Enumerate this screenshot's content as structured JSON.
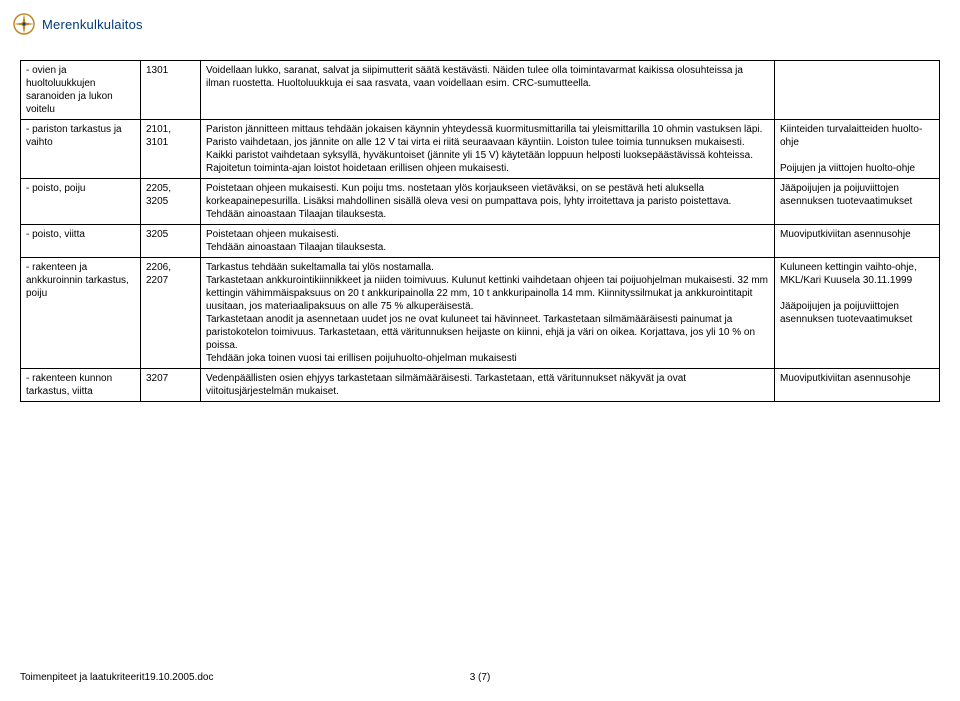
{
  "brand": "Merenkulkulaitos",
  "rows": [
    {
      "col1": "- ovien ja huoltoluukkujen saranoiden ja lukon voitelu",
      "col2": "1301",
      "col3": "Voidellaan lukko, saranat, salvat ja siipimutterit säätä kestävästi. Näiden tulee olla toimintavarmat kaikissa olosuhteissa ja ilman ruostetta. Huoltoluukkuja ei saa rasvata, vaan voidellaan esim. CRC-sumutteella.",
      "col4": ""
    },
    {
      "col1": "- pariston tarkastus ja vaihto",
      "col2": "2101, 3101",
      "col3": "Pariston jännitteen mittaus tehdään jokaisen käynnin yhteydessä kuormitusmittarilla tai yleismittarilla 10 ohmin vastuksen läpi. Paristo vaihdetaan, jos jännite on alle 12 V tai virta ei riitä seuraavaan käyntiin. Loiston tulee toimia tunnuksen mukaisesti.\nKaikki paristot vaihdetaan syksyllä, hyväkuntoiset (jännite yli 15 V) käytetään loppuun helposti luoksepäästävissä kohteissa.\nRajoitetun toiminta-ajan loistot hoidetaan erillisen ohjeen mukaisesti.",
      "col4": "Kiinteiden turvalaitteiden huolto-ohje\n\nPoijujen ja viittojen huolto-ohje"
    },
    {
      "col1": "- poisto, poiju",
      "col2": "2205, 3205",
      "col3": "Poistetaan ohjeen mukaisesti. Kun poiju tms. nostetaan ylös korjaukseen vietäväksi, on se pestävä heti aluksella korkeapainepesurilla. Lisäksi mahdollinen sisällä oleva vesi on pumpattava pois, lyhty irroitettava ja paristo poistettava.\nTehdään ainoastaan Tilaajan tilauksesta.",
      "col4": "Jääpoijujen ja poijuviittojen asennuksen tuotevaatimukset"
    },
    {
      "col1": "- poisto, viitta",
      "col2": "3205",
      "col3": "Poistetaan ohjeen mukaisesti.\nTehdään ainoastaan Tilaajan tilauksesta.",
      "col4": "Muoviputkiviitan asennusohje"
    },
    {
      "col1": "- rakenteen ja ankkuroinnin tarkastus, poiju",
      "col2": "2206, 2207",
      "col3": "Tarkastus tehdään sukeltamalla tai ylös nostamalla.\nTarkastetaan ankkurointikiinnikkeet ja niiden toimivuus. Kulunut kettinki vaihdetaan ohjeen tai poijuohjelman mukaisesti. 32 mm kettingin vähimmäispaksuus on 20 t ankkuripainolla 22 mm, 10 t ankkuripainolla 14 mm. Kiinnityssilmukat ja ankkurointitapit uusitaan, jos materiaalipaksuus on alle 75 % alkuperäisestä.\nTarkastetaan anodit ja asennetaan uudet jos ne ovat kuluneet tai hävinneet. Tarkastetaan silmämääräisesti painumat ja paristokotelon toimivuus. Tarkastetaan, että väritunnuksen heijaste on kiinni, ehjä ja väri on oikea. Korjattava, jos yli 10 % on poissa.\nTehdään joka toinen vuosi tai erillisen poijuhuolto-ohjelman mukaisesti",
      "col4": "Kuluneen kettingin vaihto-ohje, MKL/Kari Kuusela 30.11.1999\n\nJääpoijujen ja poijuviittojen asennuksen tuotevaatimukset"
    },
    {
      "col1": "- rakenteen kunnon tarkastus, viitta",
      "col2": "3207",
      "col3": "Vedenpäällisten osien ehjyys tarkastetaan silmämääräisesti. Tarkastetaan, että väritunnukset näkyvät ja ovat viitoitusjärjestelmän mukaiset.",
      "col4": "Muoviputkiviitan asennusohje"
    }
  ],
  "footer_left": "Toimenpiteet ja laatukriteerit19.10.2005.doc",
  "footer_center": "3 (7)"
}
